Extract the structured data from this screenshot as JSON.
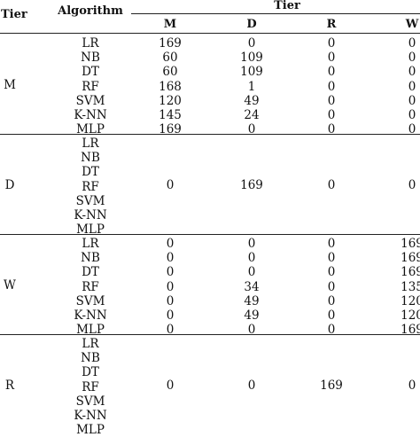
{
  "header": {
    "tier_col": "Tier",
    "algorithm_col": "Algorithm",
    "tier_group": "Tier",
    "columns": [
      "M",
      "D",
      "R",
      "W"
    ]
  },
  "groups": [
    {
      "tier": "M",
      "rows": [
        {
          "algorithm": "LR",
          "values": [
            "169",
            "0",
            "0",
            "0"
          ]
        },
        {
          "algorithm": "NB",
          "values": [
            "60",
            "109",
            "0",
            "0"
          ]
        },
        {
          "algorithm": "DT",
          "values": [
            "60",
            "109",
            "0",
            "0"
          ]
        },
        {
          "algorithm": "RF",
          "values": [
            "168",
            "1",
            "0",
            "0"
          ]
        },
        {
          "algorithm": "SVM",
          "values": [
            "120",
            "49",
            "0",
            "0"
          ]
        },
        {
          "algorithm": "K-NN",
          "values": [
            "145",
            "24",
            "0",
            "0"
          ]
        },
        {
          "algorithm": "MLP",
          "values": [
            "169",
            "0",
            "0",
            "0"
          ]
        }
      ]
    },
    {
      "tier": "D",
      "algorithms": [
        "LR",
        "NB",
        "DT",
        "RF",
        "SVM",
        "K-NN",
        "MLP"
      ],
      "values": [
        "0",
        "169",
        "0",
        "0"
      ]
    },
    {
      "tier": "W",
      "rows": [
        {
          "algorithm": "LR",
          "values": [
            "0",
            "0",
            "0",
            "169"
          ]
        },
        {
          "algorithm": "NB",
          "values": [
            "0",
            "0",
            "0",
            "169"
          ]
        },
        {
          "algorithm": "DT",
          "values": [
            "0",
            "0",
            "0",
            "169"
          ]
        },
        {
          "algorithm": "RF",
          "values": [
            "0",
            "34",
            "0",
            "135"
          ]
        },
        {
          "algorithm": "SVM",
          "values": [
            "0",
            "49",
            "0",
            "120"
          ]
        },
        {
          "algorithm": "K-NN",
          "values": [
            "0",
            "49",
            "0",
            "120"
          ]
        },
        {
          "algorithm": "MLP",
          "values": [
            "0",
            "0",
            "0",
            "169"
          ]
        }
      ]
    },
    {
      "tier": "R",
      "algorithms": [
        "LR",
        "NB",
        "DT",
        "RF",
        "SVM",
        "K-NN",
        "MLP"
      ],
      "values": [
        "0",
        "0",
        "169",
        "0"
      ]
    }
  ]
}
